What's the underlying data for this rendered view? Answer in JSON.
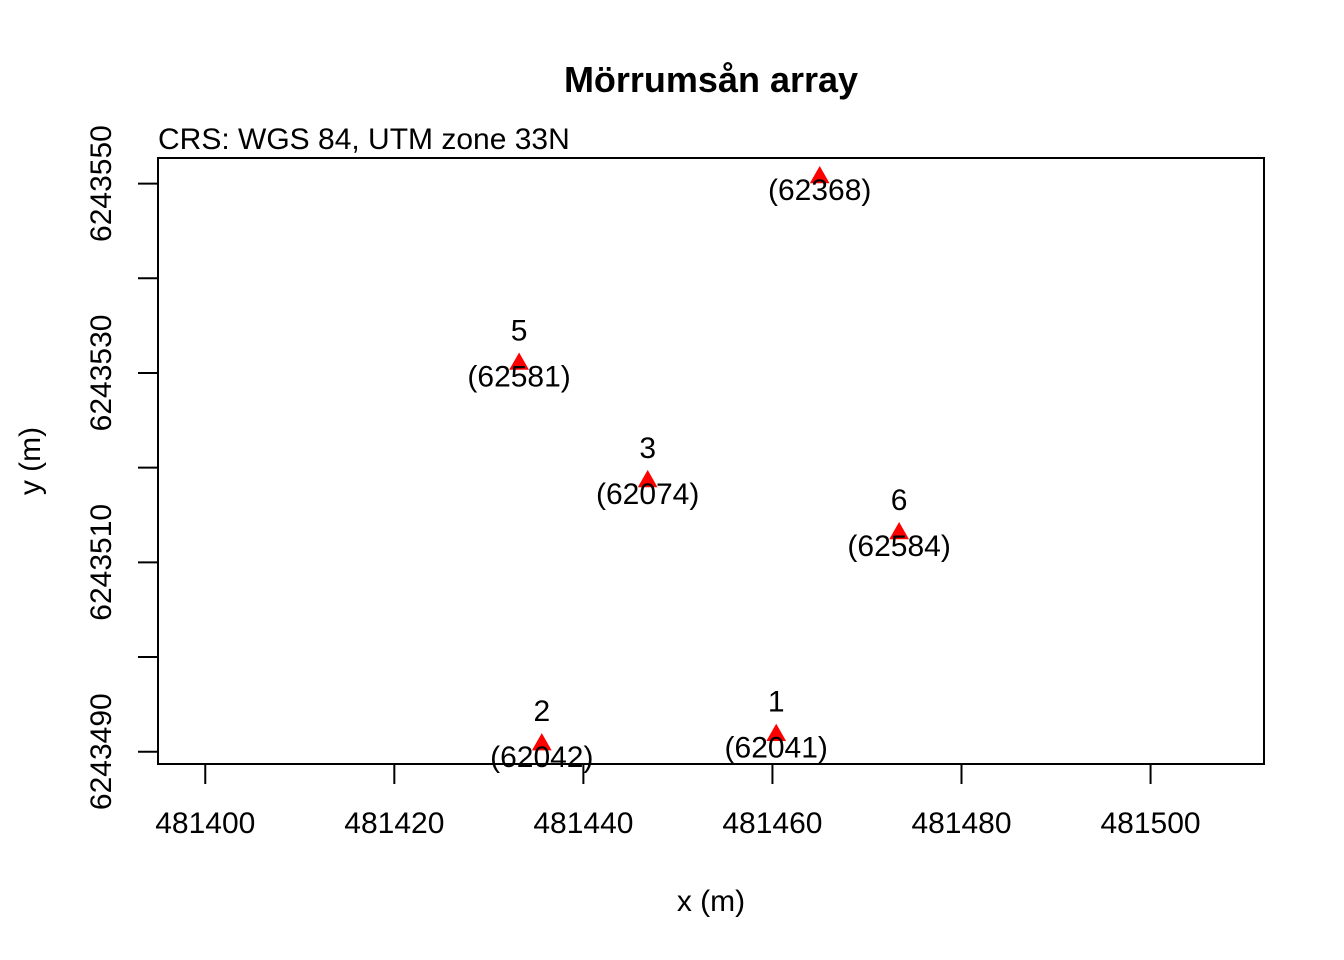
{
  "chart_data": {
    "type": "scatter",
    "title": "Mörrumsån array",
    "subtitle": "CRS: WGS 84, UTM zone 33N",
    "xlabel": "x (m)",
    "ylabel": "y (m)",
    "xlim": [
      481395,
      481512
    ],
    "ylim": [
      6243488.7,
      6243552.7
    ],
    "x_ticks": [
      481400,
      481420,
      481440,
      481460,
      481480,
      481500
    ],
    "y_ticks": [
      6243490,
      6243500,
      6243510,
      6243520,
      6243530,
      6243540,
      6243550
    ],
    "y_tick_labels": [
      "6243490",
      "",
      "6243510",
      "",
      "6243530",
      "",
      "6243550"
    ],
    "grid": false,
    "marker": {
      "shape": "triangle",
      "color": "#ff0000"
    },
    "points": [
      {
        "x": 481460.4,
        "y": 6243491.9,
        "label": "1",
        "sublabel": "(62041)"
      },
      {
        "x": 481435.6,
        "y": 6243490.9,
        "label": "2",
        "sublabel": "(62042)"
      },
      {
        "x": 481446.8,
        "y": 6243518.7,
        "label": "3",
        "sublabel": "(62074)"
      },
      {
        "x": 481433.2,
        "y": 6243531.1,
        "label": "5",
        "sublabel": "(62581)"
      },
      {
        "x": 481473.4,
        "y": 6243513.2,
        "label": "6",
        "sublabel": "(62584)"
      },
      {
        "x": 481465.0,
        "y": 6243550.8,
        "label": "",
        "sublabel": "(62368)"
      }
    ]
  }
}
